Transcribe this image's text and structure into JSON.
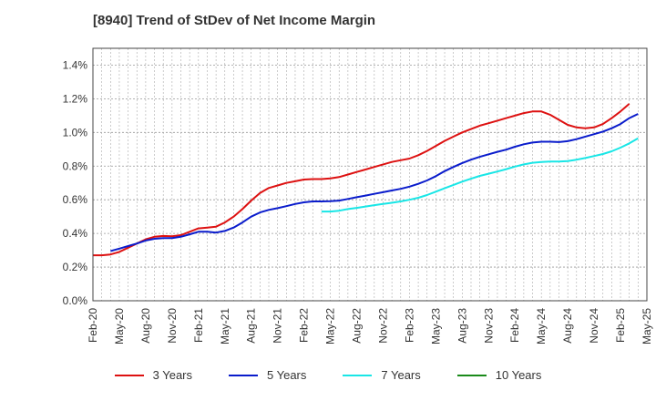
{
  "chart_data": {
    "type": "line",
    "title": "[8940]  Trend of StDev of Net Income Margin",
    "xlabel": "",
    "ylabel": "",
    "ylim": [
      0,
      1.5
    ],
    "y_ticks": [
      "0.0%",
      "0.2%",
      "0.4%",
      "0.6%",
      "0.8%",
      "1.0%",
      "1.2%",
      "1.4%"
    ],
    "y_tick_values": [
      0,
      0.2,
      0.4,
      0.6,
      0.8,
      1.0,
      1.2,
      1.4
    ],
    "x_ticks": [
      "Feb-20",
      "May-20",
      "Aug-20",
      "Nov-20",
      "Feb-21",
      "May-21",
      "Aug-21",
      "Nov-21",
      "Feb-22",
      "May-22",
      "Aug-22",
      "Nov-22",
      "Feb-23",
      "May-23",
      "Aug-23",
      "Nov-23",
      "Feb-24",
      "May-24",
      "Aug-24",
      "Nov-24",
      "Feb-25",
      "May-25"
    ],
    "x_unit": "month",
    "x_start": "Feb-20",
    "grid": true,
    "legend_position": "bottom",
    "series": [
      {
        "name": "3 Years",
        "color": "#dd1111",
        "values": [
          [
            "Feb-20",
            0.27
          ],
          [
            "Mar-20",
            0.27
          ],
          [
            "Apr-20",
            0.275
          ],
          [
            "May-20",
            0.29
          ],
          [
            "Jun-20",
            0.315
          ],
          [
            "Jul-20",
            0.34
          ],
          [
            "Aug-20",
            0.365
          ],
          [
            "Sep-20",
            0.38
          ],
          [
            "Oct-20",
            0.385
          ],
          [
            "Nov-20",
            0.383
          ],
          [
            "Dec-20",
            0.39
          ],
          [
            "Jan-21",
            0.41
          ],
          [
            "Feb-21",
            0.43
          ],
          [
            "Mar-21",
            0.435
          ],
          [
            "Apr-21",
            0.44
          ],
          [
            "May-21",
            0.465
          ],
          [
            "Jun-21",
            0.5
          ],
          [
            "Jul-21",
            0.545
          ],
          [
            "Aug-21",
            0.595
          ],
          [
            "Sep-21",
            0.64
          ],
          [
            "Oct-21",
            0.67
          ],
          [
            "Nov-21",
            0.685
          ],
          [
            "Dec-21",
            0.7
          ],
          [
            "Jan-22",
            0.71
          ],
          [
            "Feb-22",
            0.72
          ],
          [
            "Mar-22",
            0.723
          ],
          [
            "Apr-22",
            0.723
          ],
          [
            "May-22",
            0.727
          ],
          [
            "Jun-22",
            0.735
          ],
          [
            "Jul-22",
            0.75
          ],
          [
            "Aug-22",
            0.765
          ],
          [
            "Sep-22",
            0.78
          ],
          [
            "Oct-22",
            0.795
          ],
          [
            "Nov-22",
            0.81
          ],
          [
            "Dec-22",
            0.825
          ],
          [
            "Jan-23",
            0.835
          ],
          [
            "Feb-23",
            0.845
          ],
          [
            "Mar-23",
            0.865
          ],
          [
            "Apr-23",
            0.89
          ],
          [
            "May-23",
            0.92
          ],
          [
            "Jun-23",
            0.95
          ],
          [
            "Jul-23",
            0.975
          ],
          [
            "Aug-23",
            1.0
          ],
          [
            "Sep-23",
            1.02
          ],
          [
            "Oct-23",
            1.04
          ],
          [
            "Nov-23",
            1.055
          ],
          [
            "Dec-23",
            1.07
          ],
          [
            "Jan-24",
            1.085
          ],
          [
            "Feb-24",
            1.1
          ],
          [
            "Mar-24",
            1.115
          ],
          [
            "Apr-24",
            1.125
          ],
          [
            "May-24",
            1.125
          ],
          [
            "Jun-24",
            1.105
          ],
          [
            "Jul-24",
            1.075
          ],
          [
            "Aug-24",
            1.045
          ],
          [
            "Sep-24",
            1.03
          ],
          [
            "Oct-24",
            1.025
          ],
          [
            "Nov-24",
            1.03
          ],
          [
            "Dec-24",
            1.05
          ],
          [
            "Jan-25",
            1.085
          ],
          [
            "Feb-25",
            1.125
          ],
          [
            "Mar-25",
            1.17
          ]
        ]
      },
      {
        "name": "5 Years",
        "color": "#0a1ccc",
        "values": [
          [
            "Apr-20",
            0.295
          ],
          [
            "May-20",
            0.31
          ],
          [
            "Jun-20",
            0.325
          ],
          [
            "Jul-20",
            0.34
          ],
          [
            "Aug-20",
            0.358
          ],
          [
            "Sep-20",
            0.368
          ],
          [
            "Oct-20",
            0.372
          ],
          [
            "Nov-20",
            0.372
          ],
          [
            "Dec-20",
            0.38
          ],
          [
            "Jan-21",
            0.395
          ],
          [
            "Feb-21",
            0.41
          ],
          [
            "Mar-21",
            0.41
          ],
          [
            "Apr-21",
            0.405
          ],
          [
            "May-21",
            0.415
          ],
          [
            "Jun-21",
            0.435
          ],
          [
            "Jul-21",
            0.465
          ],
          [
            "Aug-21",
            0.5
          ],
          [
            "Sep-21",
            0.525
          ],
          [
            "Oct-21",
            0.54
          ],
          [
            "Nov-21",
            0.55
          ],
          [
            "Dec-21",
            0.562
          ],
          [
            "Jan-22",
            0.575
          ],
          [
            "Feb-22",
            0.585
          ],
          [
            "Mar-22",
            0.59
          ],
          [
            "Apr-22",
            0.59
          ],
          [
            "May-22",
            0.592
          ],
          [
            "Jun-22",
            0.595
          ],
          [
            "Jul-22",
            0.605
          ],
          [
            "Aug-22",
            0.615
          ],
          [
            "Sep-22",
            0.625
          ],
          [
            "Oct-22",
            0.635
          ],
          [
            "Nov-22",
            0.645
          ],
          [
            "Dec-22",
            0.655
          ],
          [
            "Jan-23",
            0.665
          ],
          [
            "Feb-23",
            0.678
          ],
          [
            "Mar-23",
            0.695
          ],
          [
            "Apr-23",
            0.715
          ],
          [
            "May-23",
            0.74
          ],
          [
            "Jun-23",
            0.77
          ],
          [
            "Jul-23",
            0.795
          ],
          [
            "Aug-23",
            0.818
          ],
          [
            "Sep-23",
            0.838
          ],
          [
            "Oct-23",
            0.855
          ],
          [
            "Nov-23",
            0.87
          ],
          [
            "Dec-23",
            0.885
          ],
          [
            "Jan-24",
            0.898
          ],
          [
            "Feb-24",
            0.915
          ],
          [
            "Mar-24",
            0.93
          ],
          [
            "Apr-24",
            0.94
          ],
          [
            "May-24",
            0.945
          ],
          [
            "Jun-24",
            0.945
          ],
          [
            "Jul-24",
            0.943
          ],
          [
            "Aug-24",
            0.948
          ],
          [
            "Sep-24",
            0.96
          ],
          [
            "Oct-24",
            0.975
          ],
          [
            "Nov-24",
            0.99
          ],
          [
            "Dec-24",
            1.005
          ],
          [
            "Jan-25",
            1.025
          ],
          [
            "Feb-25",
            1.05
          ],
          [
            "Mar-25",
            1.085
          ],
          [
            "Apr-25",
            1.11
          ]
        ]
      },
      {
        "name": "7 Years",
        "color": "#19e6e6",
        "values": [
          [
            "Apr-22",
            0.53
          ],
          [
            "May-22",
            0.53
          ],
          [
            "Jun-22",
            0.535
          ],
          [
            "Jul-22",
            0.545
          ],
          [
            "Aug-22",
            0.552
          ],
          [
            "Sep-22",
            0.56
          ],
          [
            "Oct-22",
            0.568
          ],
          [
            "Nov-22",
            0.575
          ],
          [
            "Dec-22",
            0.582
          ],
          [
            "Jan-23",
            0.59
          ],
          [
            "Feb-23",
            0.6
          ],
          [
            "Mar-23",
            0.612
          ],
          [
            "Apr-23",
            0.628
          ],
          [
            "May-23",
            0.648
          ],
          [
            "Jun-23",
            0.668
          ],
          [
            "Jul-23",
            0.688
          ],
          [
            "Aug-23",
            0.708
          ],
          [
            "Sep-23",
            0.725
          ],
          [
            "Oct-23",
            0.742
          ],
          [
            "Nov-23",
            0.755
          ],
          [
            "Dec-23",
            0.768
          ],
          [
            "Jan-24",
            0.782
          ],
          [
            "Feb-24",
            0.797
          ],
          [
            "Mar-24",
            0.81
          ],
          [
            "Apr-24",
            0.82
          ],
          [
            "May-24",
            0.825
          ],
          [
            "Jun-24",
            0.827
          ],
          [
            "Jul-24",
            0.827
          ],
          [
            "Aug-24",
            0.83
          ],
          [
            "Sep-24",
            0.838
          ],
          [
            "Oct-24",
            0.848
          ],
          [
            "Nov-24",
            0.86
          ],
          [
            "Dec-24",
            0.872
          ],
          [
            "Jan-25",
            0.888
          ],
          [
            "Feb-25",
            0.91
          ],
          [
            "Mar-25",
            0.935
          ],
          [
            "Apr-25",
            0.965
          ]
        ]
      },
      {
        "name": "10 Years",
        "color": "#1a8a1a",
        "values": []
      }
    ]
  }
}
